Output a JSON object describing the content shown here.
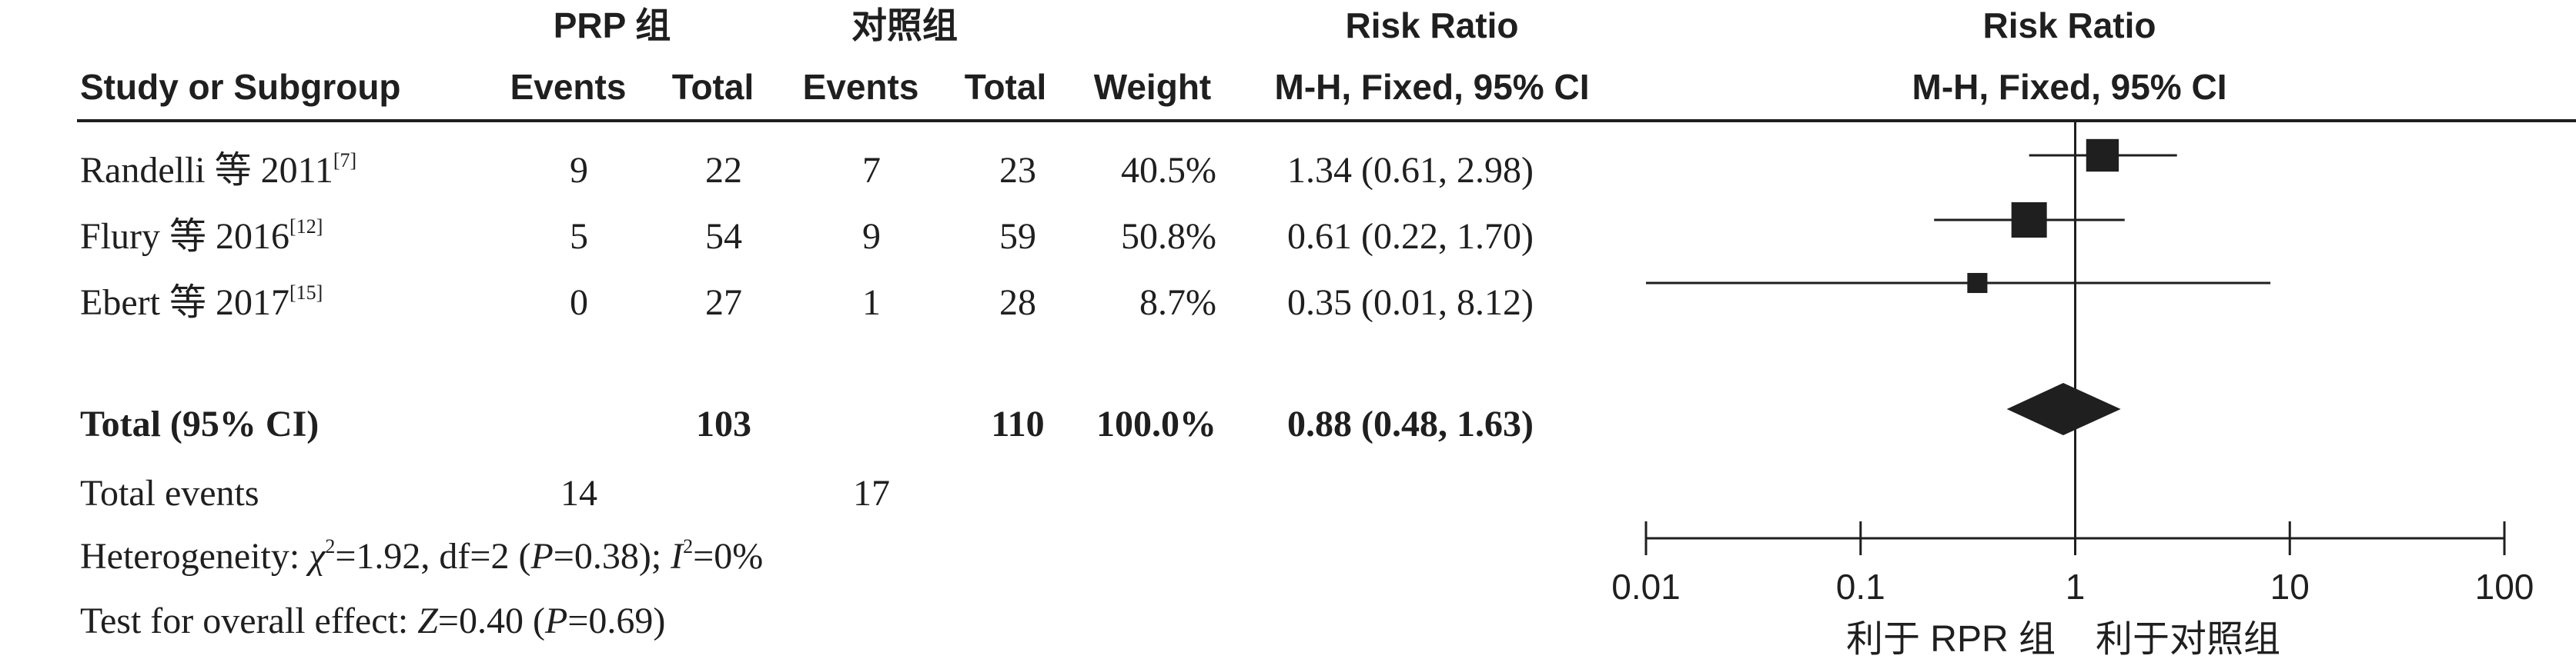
{
  "headers": {
    "group1": "PRP 组",
    "group2": "对照组",
    "rr_top": "Risk Ratio",
    "rr_method": "M-H, Fixed, 95% CI",
    "plot_top": "Risk Ratio",
    "plot_method": "M-H, Fixed, 95% CI",
    "study": "Study or Subgroup",
    "events1": "Events",
    "total1": "Total",
    "events2": "Events",
    "total2": "Total",
    "weight": "Weight"
  },
  "studies": [
    {
      "name": "Randelli 等 2011",
      "ref": "[7]",
      "e1": "9",
      "t1": "22",
      "e2": "7",
      "t2": "23",
      "weight": "40.5%",
      "ci": "1.34 (0.61, 2.98)"
    },
    {
      "name": "Flury 等 2016",
      "ref": "[12]",
      "e1": "5",
      "t1": "54",
      "e2": "9",
      "t2": "59",
      "weight": "50.8%",
      "ci": "0.61 (0.22, 1.70)"
    },
    {
      "name": "Ebert 等 2017",
      "ref": "[15]",
      "e1": "0",
      "t1": "27",
      "e2": "1",
      "t2": "28",
      "weight": "8.7%",
      "ci": "0.35 (0.01, 8.12)"
    }
  ],
  "total_row": {
    "label": "Total (95% CI)",
    "t1": "103",
    "t2": "110",
    "weight": "100.0%",
    "ci": "0.88 (0.48, 1.63)"
  },
  "total_events": {
    "label": "Total events",
    "e1": "14",
    "e2": "17"
  },
  "heterogeneity": {
    "prefix": "Heterogeneity: ",
    "chi": "χ",
    "chi_sup": "2",
    "mid1": "=1.92, df=2 (",
    "p1": "P",
    "mid2": "=0.38); ",
    "i": "I",
    "i_sup": "2",
    "end": "=0%"
  },
  "overall": {
    "prefix": "Test for overall effect: ",
    "z": "Z",
    "mid": "=0.40 (",
    "p": "P",
    "end": "=0.69)"
  },
  "favours": {
    "left": "利于 RPR 组",
    "right": "利于对照组"
  },
  "chart_data": {
    "type": "forest",
    "scale": "log",
    "xlim": [
      0.01,
      100
    ],
    "ticks": [
      "0.01",
      "0.1",
      "1",
      "10",
      "100"
    ],
    "null_value": 1,
    "studies": [
      {
        "rr": 1.34,
        "lower": 0.61,
        "upper": 2.98,
        "weight": 40.5
      },
      {
        "rr": 0.61,
        "lower": 0.22,
        "upper": 1.7,
        "weight": 50.8
      },
      {
        "rr": 0.35,
        "lower": 0.01,
        "upper": 8.12,
        "weight": 8.7
      }
    ],
    "pooled": {
      "rr": 0.88,
      "lower": 0.48,
      "upper": 1.63
    }
  }
}
